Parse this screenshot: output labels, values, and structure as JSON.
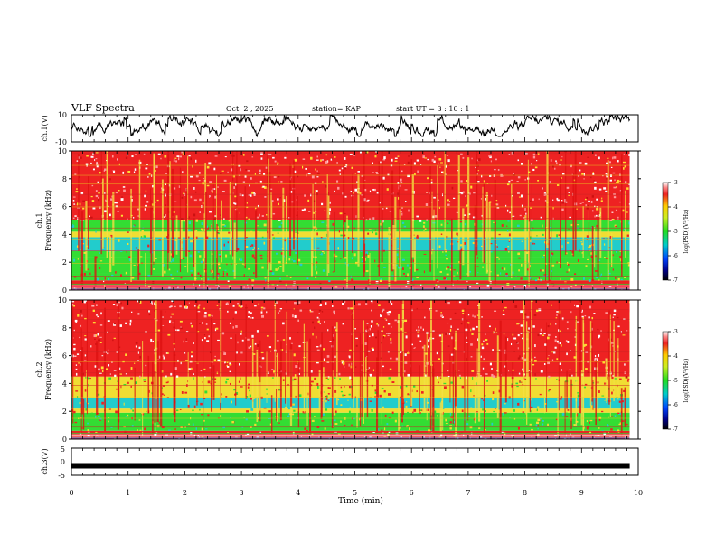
{
  "header": {
    "title": "VLF Spectra",
    "date": "Oct. 2 , 2025",
    "station": "station= KAP",
    "start_ut": "start UT =  3 : 10 : 1"
  },
  "colors": {
    "spec_high": "#ee2222",
    "spec_mid": "#f0dd33",
    "spec_low": "#33dd33",
    "spec_lower": "#22cccc",
    "trace": "#000000"
  },
  "chart_data": [
    {
      "id": "ch1-voltage",
      "type": "line",
      "ylabel": "ch.1(V)",
      "ylim": [
        -10,
        10
      ],
      "ytick_labels": [
        "10",
        "-10"
      ],
      "xlim": [
        0,
        9.85
      ],
      "note": "waveform oscillating roughly between -5 and +8 V"
    },
    {
      "id": "ch1-spectrogram",
      "type": "heatmap",
      "ylabel": "ch.1\nFrequency (kHz)",
      "ylabel_line1": "ch.1",
      "ylabel_line2": "Frequency (kHz)",
      "ylim": [
        0,
        10
      ],
      "yticks": [
        0,
        2,
        4,
        6,
        8,
        10
      ],
      "ytick_labels": [
        "0",
        "2",
        "4",
        "6",
        "8",
        "10"
      ],
      "bands_log_psd": [
        {
          "from": 0.0,
          "to": 0.7,
          "level": -3.5
        },
        {
          "from": 0.7,
          "to": 1.2,
          "level": -4.8
        },
        {
          "from": 1.2,
          "to": 2.4,
          "level": -5.2
        },
        {
          "from": 2.4,
          "to": 2.8,
          "level": -4.6
        },
        {
          "from": 2.8,
          "to": 3.8,
          "level": -5.3
        },
        {
          "from": 3.8,
          "to": 4.2,
          "level": -4.2
        },
        {
          "from": 4.2,
          "to": 5.0,
          "level": -5.1
        },
        {
          "from": 5.0,
          "to": 10.0,
          "level": -3.6
        }
      ],
      "colorbar": {
        "label": "log(PSD)(V²/Hz)",
        "min": -7,
        "max": -3,
        "ticks": [
          "-3",
          "-4",
          "-5",
          "-6",
          "-7"
        ]
      }
    },
    {
      "id": "ch2-spectrogram",
      "type": "heatmap",
      "ylabel": "ch.2\nFrequency (kHz)",
      "ylabel_line1": "ch.2",
      "ylabel_line2": "Frequency (kHz)",
      "ylim": [
        0,
        10
      ],
      "yticks": [
        0,
        2,
        4,
        6,
        8,
        10
      ],
      "ytick_labels": [
        "0",
        "2",
        "4",
        "6",
        "8",
        "10"
      ],
      "bands_log_psd": [
        {
          "from": 0.0,
          "to": 0.6,
          "level": -3.6
        },
        {
          "from": 0.6,
          "to": 1.9,
          "level": -5.2
        },
        {
          "from": 1.9,
          "to": 2.2,
          "level": -4.5
        },
        {
          "from": 2.2,
          "to": 3.0,
          "level": -5.4
        },
        {
          "from": 3.0,
          "to": 4.5,
          "level": -4.1
        },
        {
          "from": 4.5,
          "to": 10.0,
          "level": -3.6
        }
      ],
      "colorbar": {
        "label": "log(PSD)(V²/Hz)",
        "min": -7,
        "max": -3,
        "ticks": [
          "-3",
          "-4",
          "-5",
          "-6",
          "-7"
        ]
      }
    },
    {
      "id": "ch3-voltage",
      "type": "line",
      "ylabel": "ch.3(V)",
      "ylim": [
        -5,
        5
      ],
      "ytick_labels": [
        "5",
        "0",
        "-5"
      ],
      "xlim": [
        0,
        9.85
      ],
      "note": "thick flat band near -1.5 V",
      "level": -1.5
    }
  ],
  "xaxis": {
    "label": "Time (min)",
    "lim": [
      0,
      10
    ],
    "ticks": [
      0,
      1,
      2,
      3,
      4,
      5,
      6,
      7,
      8,
      9,
      10
    ],
    "tick_labels": [
      "0",
      "1",
      "2",
      "3",
      "4",
      "5",
      "6",
      "7",
      "8",
      "9",
      "10"
    ]
  }
}
